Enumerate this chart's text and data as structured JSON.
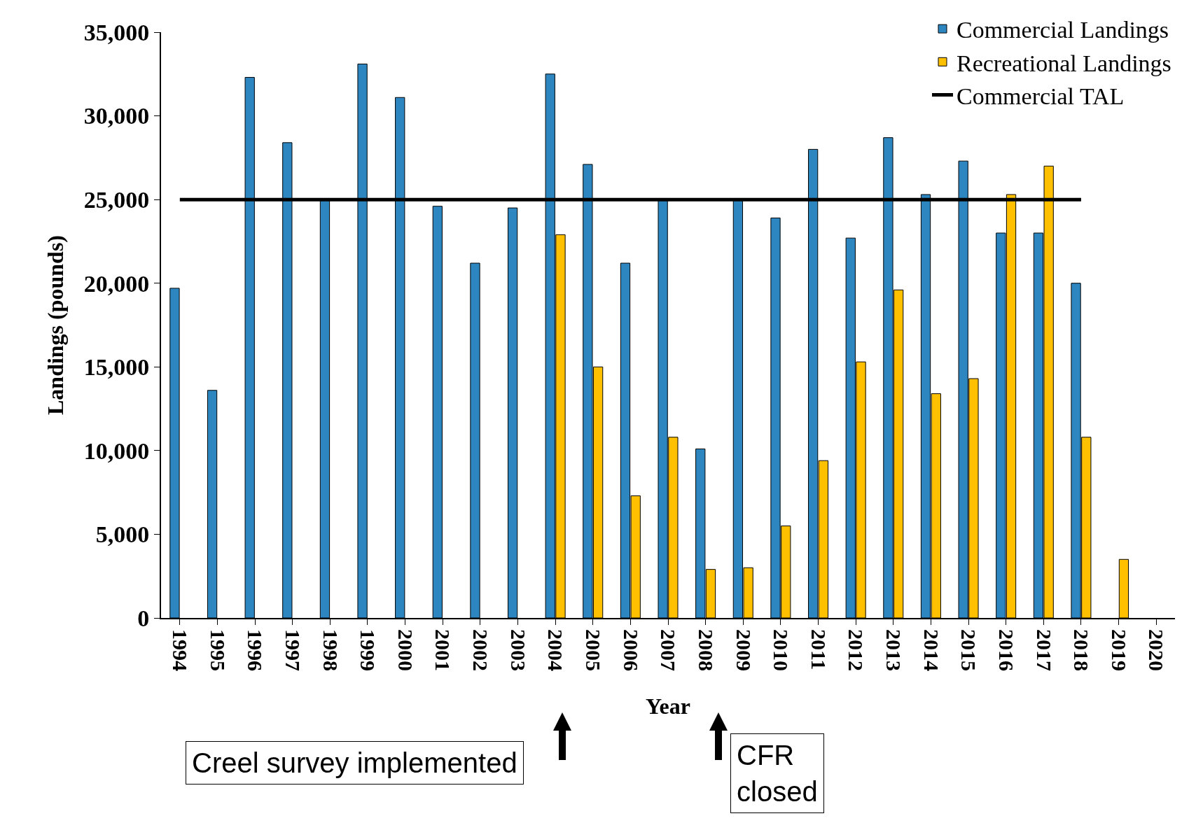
{
  "chart_data": {
    "type": "bar",
    "xlabel": "Year",
    "ylabel": "Landings (pounds)",
    "categories": [
      "1994",
      "1995",
      "1996",
      "1997",
      "1998",
      "1999",
      "2000",
      "2001",
      "2002",
      "2003",
      "2004",
      "2005",
      "2006",
      "2007",
      "2008",
      "2009",
      "2010",
      "2011",
      "2012",
      "2013",
      "2014",
      "2015",
      "2016",
      "2017",
      "2018",
      "2019",
      "2020"
    ],
    "series": [
      {
        "name": "Commercial Landings",
        "color": "#2e86c1",
        "values": [
          19700,
          13600,
          32300,
          28400,
          25000,
          33100,
          31100,
          24600,
          21200,
          24500,
          32500,
          27100,
          21200,
          25000,
          10100,
          25000,
          23900,
          28000,
          22700,
          28700,
          25300,
          27300,
          23000,
          23000,
          20000,
          null,
          null
        ]
      },
      {
        "name": "Recreational Landings",
        "color": "#ffc000",
        "values": [
          null,
          null,
          null,
          null,
          null,
          null,
          null,
          null,
          null,
          null,
          22900,
          15000,
          7300,
          10800,
          2900,
          3000,
          5500,
          9400,
          15300,
          19600,
          13400,
          14300,
          25300,
          27000,
          10800,
          3500,
          null
        ]
      },
      {
        "name": "Commercial TAL",
        "type": "line",
        "color": "#000000",
        "values": [
          25000,
          25000,
          25000,
          25000,
          25000,
          25000,
          25000,
          25000,
          25000,
          25000,
          25000,
          25000,
          25000,
          25000,
          25000,
          25000,
          25000,
          25000,
          25000,
          25000,
          25000,
          25000,
          25000,
          25000,
          25000,
          null,
          null
        ]
      }
    ],
    "ylim": [
      0,
      35000
    ],
    "yticks": [
      0,
      {
        "value": 5000,
        "label": "5,000"
      },
      {
        "value": 10000,
        "label": "10,000"
      },
      {
        "value": 15000,
        "label": "15,000"
      },
      {
        "value": 20000,
        "label": "20,000"
      },
      {
        "value": 25000,
        "label": "25,000"
      },
      {
        "value": 30000,
        "label": "30,000"
      },
      {
        "value": 35000,
        "label": "35,000"
      }
    ],
    "grid": false,
    "legend": "top right",
    "marker": "none",
    "line_style": "solid",
    "annotations": [
      "Creel survey implemented",
      "CFR\nclosed"
    ]
  }
}
